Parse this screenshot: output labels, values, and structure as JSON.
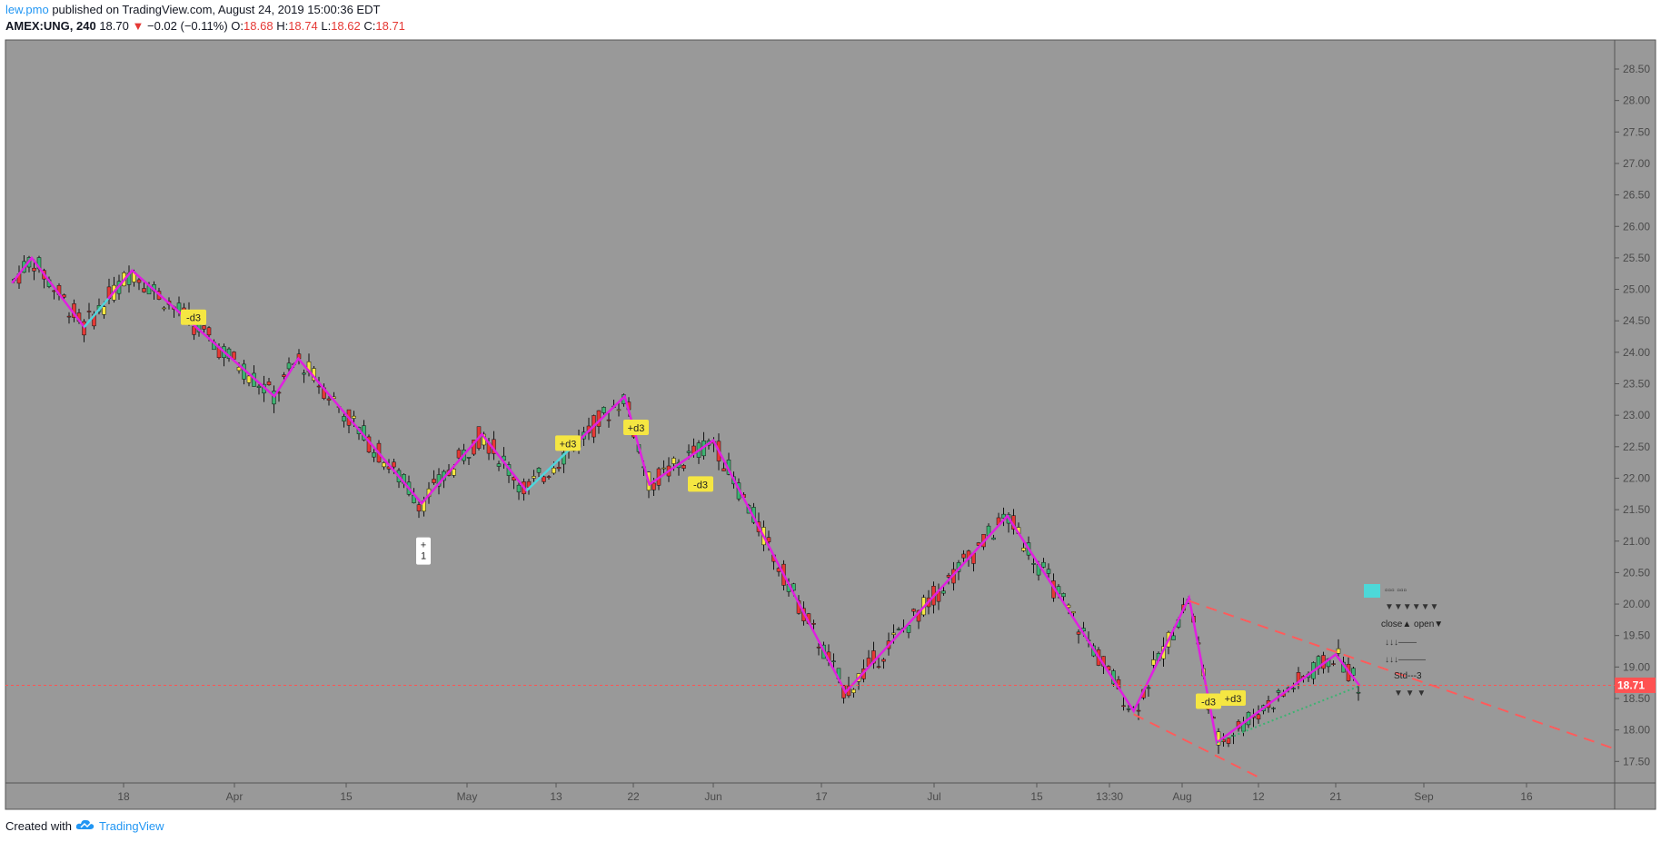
{
  "header": {
    "author": "lew.pmo",
    "published": " published on TradingView.com, August 24, 2019 15:00:36 EDT",
    "symbol": "AMEX:UNG, 240",
    "last": "18.70",
    "change_arrow": "▼",
    "change": "−0.02 (−0.11%)",
    "o_label": "O:",
    "o": "18.68",
    "h_label": "H:",
    "h": "18.74",
    "l_label": "L:",
    "l": "18.62",
    "c_label": "C:",
    "c": "18.71"
  },
  "footer": {
    "created": "Created with",
    "brand": "TradingView"
  },
  "colors": {
    "plot_bg": "#999999",
    "zigzag": "#e020e0",
    "zigzag_alt": "#4dd8d8",
    "bull": "#3cb371",
    "bear": "#e53935",
    "yellow": "#f5e642",
    "dashed": "#ff5b5b",
    "last_price_tag": "#ff5252"
  },
  "price_tag": "18.71",
  "annotations": [
    "-d3",
    "+d3",
    "+d3",
    "-d3",
    "+\n1",
    "-d3",
    "+d3"
  ],
  "panel_text": [
    "close▲  open▼",
    "Std---3"
  ],
  "chart_data": {
    "type": "candlestick",
    "title": "",
    "x_ticks": [
      "18",
      "Apr",
      "15",
      "May",
      "13",
      "22",
      "Jun",
      "17",
      "Jul",
      "15",
      "13:30",
      "Aug",
      "12",
      "21",
      "Sep",
      "16"
    ],
    "y_ticks": [
      "28.50",
      "28.00",
      "27.50",
      "27.00",
      "26.50",
      "26.00",
      "25.50",
      "25.00",
      "24.50",
      "24.00",
      "23.50",
      "23.00",
      "22.50",
      "22.00",
      "21.50",
      "21.00",
      "20.50",
      "20.00",
      "19.50",
      "19.00",
      "18.50",
      "18.00",
      "17.50"
    ],
    "ylim": [
      17.3,
      28.8
    ],
    "last_price": 18.71,
    "zigzag": [
      {
        "x": "Mar 1",
        "y": 25.1
      },
      {
        "x": "Mar 4",
        "y": 25.5
      },
      {
        "x": "Mar 12",
        "y": 24.4
      },
      {
        "x": "Mar 19",
        "y": 25.3
      },
      {
        "x": "Apr 5",
        "y": 23.3
      },
      {
        "x": "Apr 8",
        "y": 23.9
      },
      {
        "x": "Apr 24",
        "y": 21.6
      },
      {
        "x": "May 2",
        "y": 22.7
      },
      {
        "x": "May 8",
        "y": 21.8
      },
      {
        "x": "May 20",
        "y": 23.3
      },
      {
        "x": "May 23",
        "y": 21.9
      },
      {
        "x": "May 31",
        "y": 22.6
      },
      {
        "x": "Jun 19",
        "y": 18.6
      },
      {
        "x": "Jul 10",
        "y": 21.4
      },
      {
        "x": "Jul 29",
        "y": 18.3
      },
      {
        "x": "Aug 1",
        "y": 20.1
      },
      {
        "x": "Aug 5",
        "y": 17.8
      },
      {
        "x": "Aug 20",
        "y": 19.2
      },
      {
        "x": "Aug 23",
        "y": 18.7
      }
    ],
    "trendlines": [
      {
        "from": {
          "x": "Aug 1",
          "y": 20.05
        },
        "to": {
          "x": "Sep 30",
          "y": 17.7
        },
        "style": "dashed"
      },
      {
        "from": {
          "x": "Jul 29",
          "y": 18.25
        },
        "to": {
          "x": "Aug 11",
          "y": 17.25
        },
        "style": "dashed"
      },
      {
        "from": {
          "x": "Aug 5",
          "y": 17.8
        },
        "to": {
          "x": "Aug 23",
          "y": 18.7
        },
        "style": "dotted"
      }
    ]
  }
}
